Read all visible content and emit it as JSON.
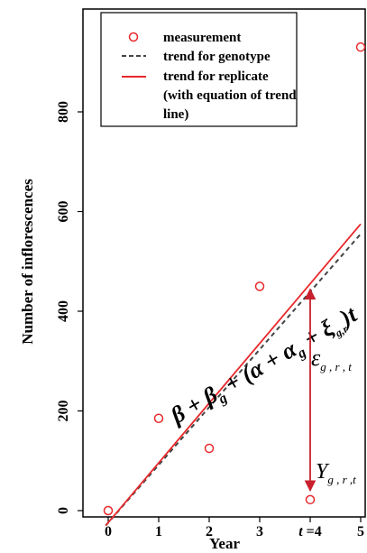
{
  "chart_data": {
    "type": "scatter",
    "title": "",
    "xlabel": "Year",
    "ylabel": "Number of inflorescences",
    "xlim": [
      -0.5,
      5.1
    ],
    "ylim": [
      -40,
      1000
    ],
    "x_ticks": [
      0,
      1,
      2,
      3,
      4,
      5
    ],
    "x_tick_labels": [
      "0",
      "1",
      "2",
      "3",
      "t =4",
      "5"
    ],
    "y_ticks": [
      0,
      200,
      400,
      600,
      800
    ],
    "y_tick_labels": [
      "0",
      "200",
      "400",
      "600",
      "800"
    ],
    "grid": false,
    "legend_position": "top-left",
    "series": [
      {
        "name": "measurement",
        "kind": "points",
        "color": "#e8282b",
        "x": [
          0,
          1,
          2,
          3,
          4,
          5
        ],
        "y": [
          0,
          185,
          125,
          450,
          22,
          930
        ]
      },
      {
        "name": "trend for genotype",
        "kind": "line",
        "color": "#444444",
        "dashed": true,
        "x": [
          -0.05,
          5
        ],
        "y": [
          -30,
          555
        ]
      },
      {
        "name": "trend for replicate\n(with equation of trend\nline)",
        "kind": "line",
        "color": "#e8282b",
        "dashed": false,
        "x": [
          -0.05,
          5
        ],
        "y": [
          -30,
          575
        ]
      }
    ],
    "legend_lines": [
      [
        "measurement"
      ],
      [
        "trend for genotype"
      ],
      [
        "trend for replicate",
        "(with equation of trend",
        "line)"
      ]
    ],
    "annotations": {
      "equation": "β + β",
      "equation_sub1": "g",
      "equation_mid": " + (α + α",
      "equation_sub2": "g",
      "equation_mid2": " + ξ",
      "equation_sub3": "g,r",
      "equation_end": ")t",
      "epsilon_symbol": "ε",
      "epsilon_sub": "g , r , t",
      "y_symbol": "Y",
      "y_sub": "g , r ,t"
    },
    "arrow": {
      "x": 4,
      "y_from": 455,
      "y_to": 22,
      "color": "#c8202e"
    }
  }
}
